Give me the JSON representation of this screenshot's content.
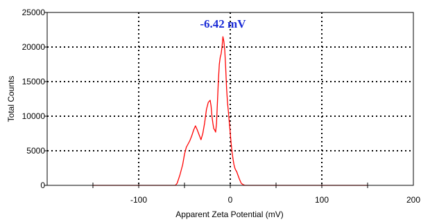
{
  "chart_data": {
    "type": "line",
    "xlabel": "Apparent Zeta Potential (mV)",
    "ylabel": "Total Counts",
    "xlim": [
      -200,
      200
    ],
    "ylim": [
      0,
      25000
    ],
    "xticks": [
      -100,
      0,
      100,
      200
    ],
    "xtick_labels": [
      "-100",
      "0",
      "100",
      "200"
    ],
    "yticks": [
      0,
      5000,
      10000,
      15000,
      20000,
      25000
    ],
    "ytick_labels": [
      "0",
      "5000",
      "10000",
      "15000",
      "20000",
      "25000"
    ],
    "grid": "dotted",
    "grid_x": [
      -100,
      0,
      100
    ],
    "grid_y": [
      5000,
      10000,
      15000,
      20000
    ],
    "annotation": {
      "text": "-6.42 mV"
    },
    "series": [
      {
        "color": "#ff0000",
        "x": [
          -150,
          -60,
          -58,
          -55,
          -52,
          -50,
          -48,
          -46,
          -44,
          -42,
          -40,
          -38,
          -36,
          -34,
          -32,
          -30,
          -28,
          -26,
          -24,
          -22,
          -21,
          -20,
          -19,
          -18,
          -17,
          -16,
          -15,
          -14,
          -13,
          -12,
          -11,
          -10,
          -9,
          -8,
          -7,
          -6,
          -5,
          -4,
          -3,
          -2,
          -1,
          0,
          1,
          2,
          3,
          4,
          5,
          6,
          7,
          8,
          10,
          12,
          14,
          16,
          18,
          20,
          150
        ],
        "y": [
          0,
          0,
          300,
          1500,
          3000,
          4500,
          5500,
          6000,
          6500,
          7200,
          8000,
          8600,
          8000,
          7300,
          6600,
          7500,
          9000,
          11000,
          12000,
          12300,
          11500,
          10000,
          9000,
          8200,
          8000,
          7700,
          9000,
          12000,
          15000,
          17500,
          18500,
          19000,
          20000,
          21500,
          20800,
          19500,
          17000,
          14000,
          12000,
          10500,
          9000,
          7500,
          6000,
          4800,
          3800,
          3000,
          2500,
          2200,
          2000,
          1600,
          900,
          300,
          100,
          0,
          0,
          0,
          0
        ]
      }
    ]
  }
}
